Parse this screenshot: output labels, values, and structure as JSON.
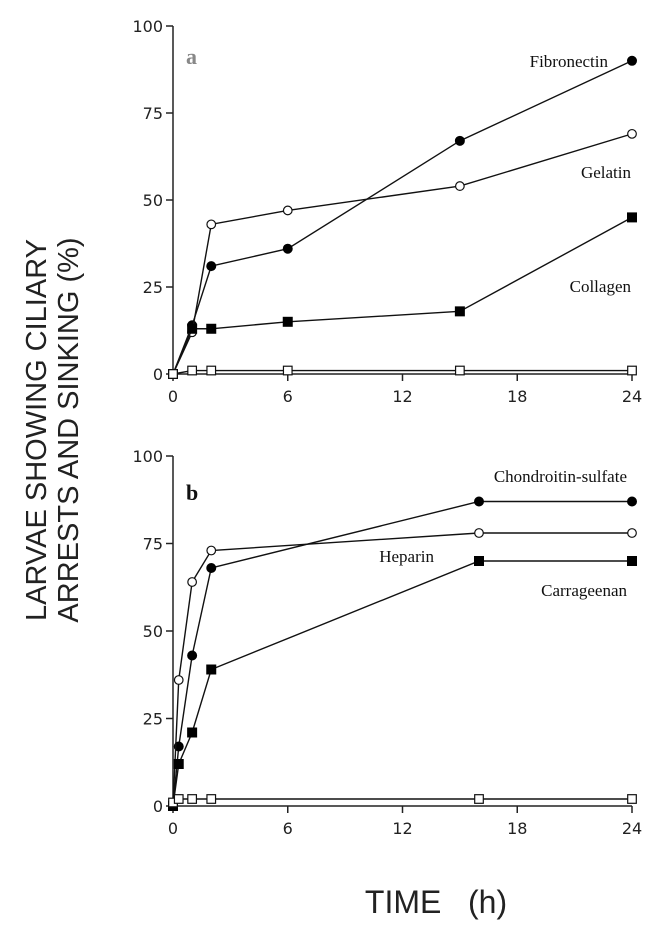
{
  "figure": {
    "ylabel_line1": "LARVAE SHOWING CILIARY",
    "ylabel_line2": "ARRESTS AND SINKING (%)",
    "xlabel": "TIME   (h)"
  },
  "chart_data": [
    {
      "type": "line",
      "panel": "a",
      "xlim": [
        0,
        24
      ],
      "ylim": [
        0,
        100
      ],
      "xticks": [
        "0",
        "6",
        "12",
        "18",
        "24"
      ],
      "yticks": [
        "0",
        "25",
        "50",
        "75",
        "100"
      ],
      "letter_color": "#888888",
      "series": [
        {
          "name": "Fibronectin",
          "marker": "filled-circle",
          "label": "Fibronectin",
          "points": [
            [
              0,
              0
            ],
            [
              1,
              14
            ],
            [
              2,
              31
            ],
            [
              6,
              36
            ],
            [
              15,
              67
            ],
            [
              24,
              90
            ]
          ]
        },
        {
          "name": "Gelatin",
          "marker": "open-circle",
          "label": "Gelatin",
          "points": [
            [
              0,
              0
            ],
            [
              1,
              12
            ],
            [
              2,
              43
            ],
            [
              6,
              47
            ],
            [
              15,
              54
            ],
            [
              24,
              69
            ]
          ]
        },
        {
          "name": "Collagen",
          "marker": "filled-square",
          "label": "Collagen",
          "points": [
            [
              0,
              0
            ],
            [
              1,
              13
            ],
            [
              2,
              13
            ],
            [
              6,
              15
            ],
            [
              15,
              18
            ],
            [
              24,
              45
            ]
          ]
        },
        {
          "name": "",
          "marker": "open-square",
          "label": "",
          "points": [
            [
              0,
              0
            ],
            [
              1,
              1
            ],
            [
              2,
              1
            ],
            [
              6,
              1
            ],
            [
              15,
              1
            ],
            [
              24,
              1
            ]
          ]
        }
      ]
    },
    {
      "type": "line",
      "panel": "b",
      "xlim": [
        0,
        24
      ],
      "ylim": [
        0,
        100
      ],
      "xticks": [
        "0",
        "6",
        "12",
        "18",
        "24"
      ],
      "yticks": [
        "0",
        "25",
        "50",
        "75",
        "100"
      ],
      "letter_color": "#111111",
      "series": [
        {
          "name": "Chondroitin-sulfate",
          "marker": "filled-circle",
          "label": "Chondroitin-sulfate",
          "points": [
            [
              0,
              0
            ],
            [
              0.3,
              17
            ],
            [
              1,
              43
            ],
            [
              2,
              68
            ],
            [
              16,
              87
            ],
            [
              24,
              87
            ]
          ]
        },
        {
          "name": "Heparin",
          "marker": "open-circle",
          "label": "Heparin",
          "points": [
            [
              0,
              0
            ],
            [
              0.3,
              36
            ],
            [
              1,
              64
            ],
            [
              2,
              73
            ],
            [
              16,
              78
            ],
            [
              24,
              78
            ]
          ]
        },
        {
          "name": "Carrageenan",
          "marker": "filled-square",
          "label": "Carrageenan",
          "points": [
            [
              0,
              0
            ],
            [
              0.3,
              12
            ],
            [
              1,
              21
            ],
            [
              2,
              39
            ],
            [
              16,
              70
            ],
            [
              24,
              70
            ]
          ]
        },
        {
          "name": "",
          "marker": "open-square",
          "label": "",
          "points": [
            [
              0,
              1
            ],
            [
              0.3,
              2
            ],
            [
              1,
              2
            ],
            [
              2,
              2
            ],
            [
              16,
              2
            ],
            [
              24,
              2
            ]
          ]
        }
      ]
    }
  ]
}
